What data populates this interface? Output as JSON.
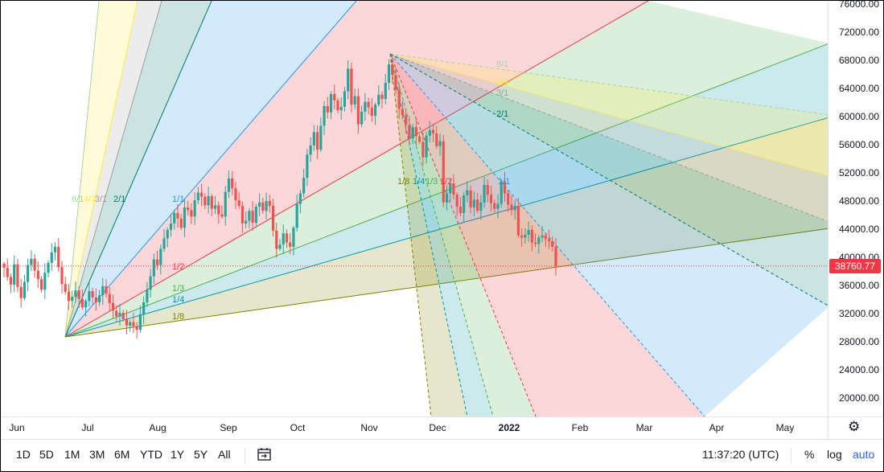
{
  "chart_data": {
    "type": "candlestick",
    "title": "",
    "x_ticks": [
      "Jun",
      "Jul",
      "Aug",
      "Sep",
      "Oct",
      "Nov",
      "Dec",
      "2022",
      "Feb",
      "Mar",
      "Apr",
      "May"
    ],
    "y_ticks": [
      "76000.00",
      "72000.00",
      "68000.00",
      "64000.00",
      "60000.00",
      "56000.00",
      "52000.00",
      "48000.00",
      "44000.00",
      "40000.00",
      "36000.00",
      "32000.00",
      "28000.00",
      "24000.00",
      "20000.00"
    ],
    "ylim": [
      17000,
      76500
    ],
    "last_price": "38760.77",
    "last_price_value": 38760.77,
    "series_close": [
      38500,
      37200,
      36100,
      39000,
      35800,
      34200,
      36500,
      38900,
      39800,
      38100,
      36900,
      35400,
      37800,
      39200,
      40700,
      41500,
      38600,
      36200,
      35100,
      33800,
      34400,
      35300,
      34100,
      32900,
      33800,
      35200,
      34300,
      33600,
      34600,
      35900,
      34800,
      33500,
      32400,
      31600,
      32100,
      31200,
      30300,
      30800,
      30200,
      29700,
      31900,
      33600,
      35400,
      37300,
      39700,
      38900,
      41200,
      42700,
      43900,
      44800,
      46300,
      45500,
      44200,
      47100,
      46700,
      45800,
      48100,
      49200,
      48600,
      47400,
      48700,
      46900,
      47400,
      46100,
      45800,
      49300,
      51200,
      49800,
      48100,
      47300,
      44800,
      45200,
      46600,
      44900,
      47200,
      47800,
      46600,
      48000,
      47300,
      43800,
      41200,
      41800,
      43400,
      42100,
      41500,
      44200,
      47600,
      49100,
      51300,
      54600,
      55900,
      57800,
      55300,
      58700,
      61500,
      60600,
      63200,
      62300,
      60900,
      61400,
      63600,
      66800,
      61700,
      62900,
      58900,
      60700,
      62100,
      61300,
      60100,
      61700,
      63100,
      62500,
      64800,
      67400,
      65900,
      63800,
      61100,
      60200,
      58800,
      56900,
      58500,
      57200,
      56400,
      54200,
      57300,
      58100,
      57600,
      55800,
      56500,
      47800,
      49100,
      50500,
      48900,
      47200,
      46300,
      48800,
      49500,
      47100,
      48200,
      46600,
      47800,
      50300,
      48900,
      47700,
      46900,
      47600,
      50800,
      49100,
      47500,
      46700,
      47300,
      43100,
      42800,
      43200,
      43900,
      42100,
      41900,
      42800,
      43100,
      42600,
      42300,
      41500,
      38760.77
    ]
  },
  "fan_labels": {
    "fan1": [
      "8/1",
      "4/1",
      "3/1",
      "2/1",
      "1/1",
      "1/2",
      "1/3",
      "1/4",
      "1/8"
    ],
    "fan2_upper": [
      "8/1",
      "4/1",
      "3/1",
      "2/1"
    ],
    "fan2_lower": [
      "1/8",
      "1/4",
      "1/3",
      "1/2",
      "1/1"
    ]
  },
  "colors": {
    "up": "#26a69a",
    "down": "#ef5350",
    "fan_8_1": "#a5d6a7",
    "fan_4_1": "#ffeb3b",
    "fan_3_1": "#9e9e9e",
    "fan_2_1": "#00796b",
    "fan_1_1": "#2196f3",
    "fan_1_2": "#f23645",
    "fan_1_3": "#4caf50",
    "fan_1_4": "#0097a7",
    "fan_1_8": "#808000"
  },
  "toolbar": {
    "ranges": [
      "1D",
      "5D",
      "1M",
      "3M",
      "6M",
      "YTD",
      "1Y",
      "5Y",
      "All"
    ],
    "time": "11:37:20 (UTC)",
    "percent": "%",
    "log": "log",
    "auto": "auto"
  },
  "icons": {
    "gear": "gear-icon",
    "compare": "date-range-icon"
  }
}
